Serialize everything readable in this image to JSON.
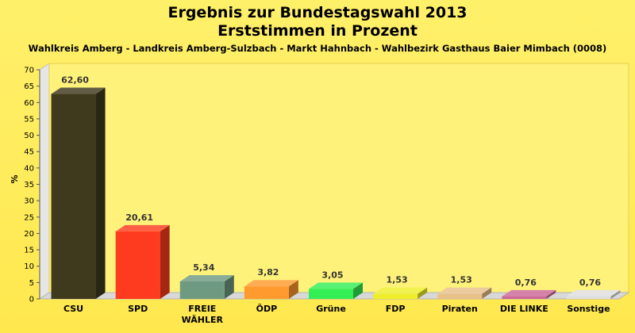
{
  "chart_data": {
    "type": "bar",
    "title": [
      "Ergebnis zur Bundestagswahl 2013",
      "Erststimmen in Prozent"
    ],
    "subtitle": "Wahlkreis Amberg - Landkreis Amberg-Sulzbach - Markt Hahnbach - Wahlbezirk Gasthaus Baier Mimbach (0008)",
    "ylabel": "%",
    "xlabel": "",
    "ylim": [
      0,
      70
    ],
    "yticks": [
      0,
      5,
      10,
      15,
      20,
      25,
      30,
      35,
      40,
      45,
      50,
      55,
      60,
      65,
      70
    ],
    "grid": false,
    "categories": [
      "CSU",
      "SPD",
      "FREIE\nWÄHLER",
      "ÖDP",
      "Grüne",
      "FDP",
      "Piraten",
      "DIE LINKE",
      "Sonstige"
    ],
    "values": [
      62.6,
      20.61,
      5.34,
      3.82,
      3.05,
      1.53,
      1.53,
      0.76,
      0.76
    ],
    "value_labels": [
      "62,60",
      "20,61",
      "5,34",
      "3,82",
      "3,05",
      "1,53",
      "1,53",
      "0,76",
      "0,76"
    ],
    "colors": [
      "#3f3a1e",
      "#ff3b1f",
      "#6f9a82",
      "#ff9a2e",
      "#33ee55",
      "#eeee2a",
      "#e8c08a",
      "#cc6699",
      "#dedede"
    ]
  }
}
